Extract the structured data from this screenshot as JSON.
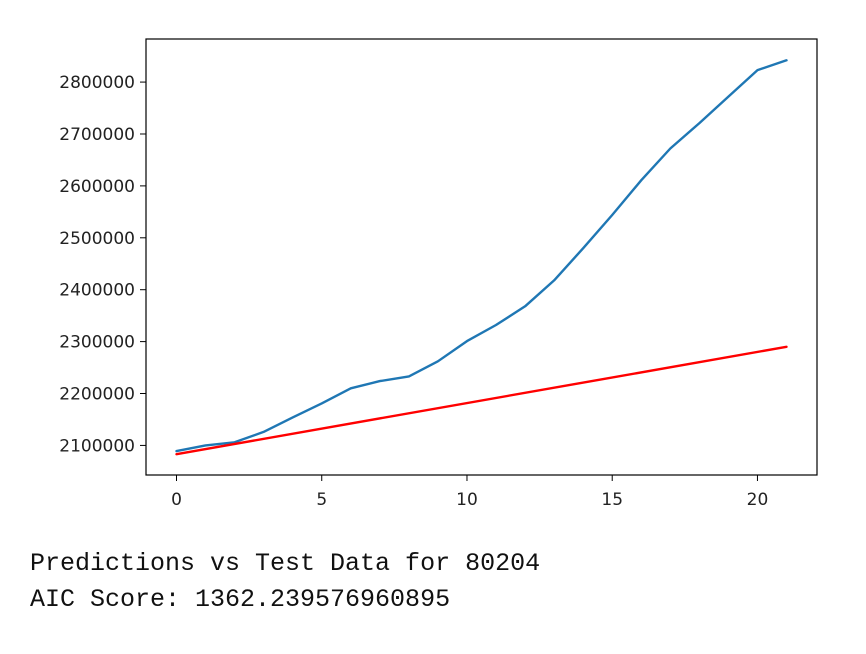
{
  "chart_data": {
    "type": "line",
    "title": "",
    "xlabel": "",
    "ylabel": "",
    "xlim": [
      -1.05,
      22.05
    ],
    "ylim": [
      2043000,
      2883000
    ],
    "grid": false,
    "x_ticks": [
      0,
      5,
      10,
      15,
      20
    ],
    "y_ticks": [
      2100000,
      2200000,
      2300000,
      2400000,
      2500000,
      2600000,
      2700000,
      2800000
    ],
    "series": [
      {
        "color": "#1f77b4",
        "x": [
          0,
          1,
          2,
          3,
          4,
          5,
          6,
          7,
          8,
          9,
          10,
          11,
          12,
          13,
          14,
          15,
          16,
          17,
          18,
          19,
          20,
          21
        ],
        "y": [
          2089000,
          2100000,
          2106000,
          2126000,
          2154000,
          2181000,
          2210000,
          2224000,
          2233000,
          2262000,
          2301000,
          2332000,
          2368000,
          2418000,
          2480000,
          2544000,
          2611000,
          2672000,
          2721000,
          2772000,
          2823000,
          2842000
        ]
      },
      {
        "color": "#ff0000",
        "x": [
          0,
          21
        ],
        "y": [
          2083000,
          2290000
        ]
      }
    ]
  },
  "captions": {
    "line1": "Predictions vs Test Data for 80204",
    "line2": "AIC Score: 1362.239576960895"
  }
}
